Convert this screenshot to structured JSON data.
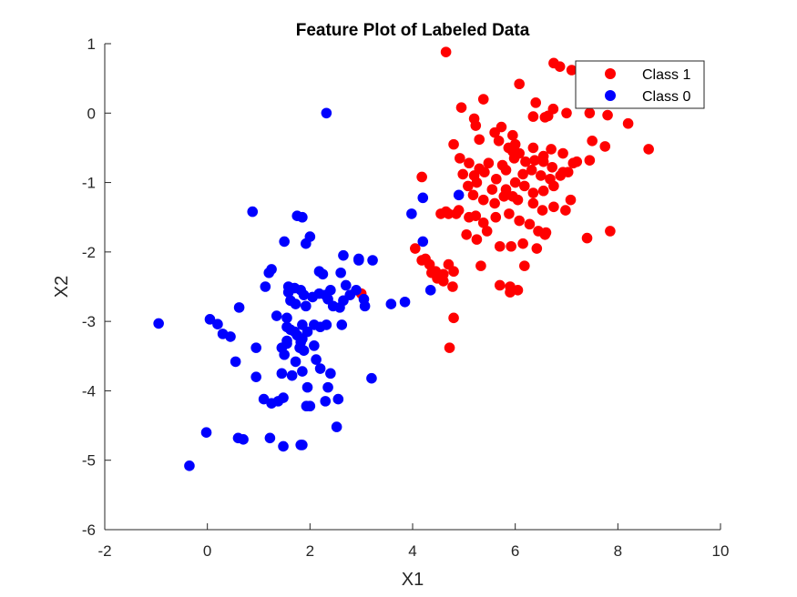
{
  "colors": {
    "class1": "#ff0000",
    "class0": "#0000ff",
    "axis": "#262626"
  },
  "chart_data": {
    "type": "scatter",
    "title": "Feature Plot of Labeled Data",
    "xlabel": "X1",
    "ylabel": "X2",
    "xlim": [
      -2,
      10
    ],
    "ylim": [
      -6,
      1
    ],
    "xticks": [
      -2,
      0,
      2,
      4,
      6,
      8,
      10
    ],
    "yticks": [
      -6,
      -5,
      -4,
      -3,
      -2,
      -1,
      0,
      1
    ],
    "xtick_labels": [
      "-2",
      "0",
      "2",
      "4",
      "6",
      "8",
      "10"
    ],
    "ytick_labels": [
      "-6",
      "-5",
      "-4",
      "-3",
      "-2",
      "-1",
      "0",
      "1"
    ],
    "grid": false,
    "legend_position": "top-right",
    "series": [
      {
        "name": "Class 1",
        "color": "#ff0000",
        "x": [
          4.65,
          6.75,
          6.87,
          7.1,
          4.95,
          5.38,
          5.2,
          6.08,
          6.4,
          6.35,
          6.58,
          6.64,
          6.74,
          7.0,
          7.45,
          7.8,
          8.2,
          4.8,
          5.23,
          5.3,
          5.73,
          5.95,
          5.6,
          5.68,
          6.0,
          5.87,
          6.35,
          6.7,
          6.93,
          5.95,
          6.08,
          6.55,
          7.2,
          7.5,
          7.75,
          8.6,
          4.92,
          5.1,
          5.3,
          5.48,
          5.75,
          5.98,
          6.2,
          6.38,
          6.55,
          6.72,
          6.93,
          7.13,
          7.45,
          4.98,
          5.2,
          5.4,
          5.63,
          5.82,
          6.0,
          6.15,
          6.32,
          6.5,
          6.68,
          6.88,
          7.03,
          4.18,
          5.08,
          5.25,
          5.55,
          5.82,
          5.95,
          6.18,
          6.35,
          6.55,
          6.75,
          5.18,
          5.38,
          5.6,
          5.78,
          6.05,
          6.35,
          6.53,
          6.75,
          6.98,
          7.08,
          4.7,
          4.9,
          5.1,
          5.23,
          5.38,
          5.62,
          5.88,
          6.08,
          6.28,
          6.45,
          6.58,
          4.55,
          4.65,
          4.85,
          5.05,
          5.25,
          5.45,
          5.7,
          5.92,
          6.15,
          6.42,
          6.6,
          4.05,
          4.18,
          4.33,
          4.45,
          4.6,
          4.7,
          4.8,
          5.33,
          5.9,
          6.05,
          6.18,
          7.4,
          7.85,
          4.25,
          4.37,
          4.48,
          4.6,
          4.78,
          3.0,
          5.7,
          5.9,
          4.8,
          4.72
        ],
        "y": [
          0.88,
          0.72,
          0.67,
          0.62,
          0.08,
          0.2,
          -0.08,
          0.42,
          0.15,
          -0.05,
          -0.06,
          -0.04,
          0.06,
          0.0,
          0.0,
          -0.03,
          -0.15,
          -0.45,
          -0.18,
          -0.38,
          -0.2,
          -0.32,
          -0.28,
          -0.4,
          -0.45,
          -0.5,
          -0.5,
          -0.52,
          -0.58,
          -0.55,
          -0.58,
          -0.62,
          -0.7,
          -0.4,
          -0.48,
          -0.52,
          -0.65,
          -0.72,
          -0.8,
          -0.72,
          -0.75,
          -0.65,
          -0.7,
          -0.68,
          -0.7,
          -0.78,
          -0.85,
          -0.72,
          -0.68,
          -0.88,
          -0.9,
          -0.85,
          -0.95,
          -0.82,
          -1.0,
          -0.88,
          -0.82,
          -0.9,
          -0.95,
          -0.9,
          -0.85,
          -0.92,
          -1.05,
          -1.0,
          -1.1,
          -1.1,
          -1.2,
          -1.05,
          -1.15,
          -1.12,
          -1.05,
          -1.18,
          -1.25,
          -1.3,
          -1.2,
          -1.25,
          -1.3,
          -1.4,
          -1.35,
          -1.4,
          -1.25,
          -1.45,
          -1.4,
          -1.5,
          -1.48,
          -1.58,
          -1.5,
          -1.45,
          -1.55,
          -1.6,
          -1.7,
          -1.75,
          -1.45,
          -1.42,
          -1.45,
          -1.75,
          -1.82,
          -1.7,
          -1.92,
          -1.92,
          -1.88,
          -1.95,
          -1.72,
          -1.95,
          -2.12,
          -2.18,
          -2.28,
          -2.32,
          -2.18,
          -2.28,
          -2.2,
          -2.5,
          -2.55,
          -2.2,
          -1.8,
          -1.7,
          -2.1,
          -2.3,
          -2.38,
          -2.42,
          -2.5,
          -2.6,
          -2.48,
          -2.58,
          -2.95,
          -3.38
        ]
      },
      {
        "name": "Class 0",
        "color": "#0000ff",
        "x": [
          2.32,
          4.9,
          4.2,
          3.98,
          4.2,
          4.35,
          3.85,
          3.58,
          3.07,
          2.95,
          2.7,
          2.65,
          2.0,
          1.92,
          1.85,
          1.75,
          0.88,
          1.25,
          1.13,
          1.2,
          1.5,
          1.58,
          1.7,
          1.82,
          2.18,
          2.25,
          2.4,
          2.6,
          2.95,
          2.78,
          2.9,
          3.05,
          3.22,
          1.58,
          1.62,
          1.88,
          2.18,
          2.35,
          2.45,
          2.58,
          1.55,
          1.72,
          1.92,
          2.05,
          2.3,
          2.65,
          1.85,
          1.95,
          2.08,
          2.2,
          1.82,
          2.32,
          1.35,
          1.55,
          1.62,
          1.7,
          1.55,
          1.75,
          1.85,
          -0.95,
          0.05,
          0.2,
          0.3,
          0.45,
          0.62,
          1.45,
          1.55,
          1.8,
          2.08,
          0.95,
          1.5,
          1.88,
          2.12,
          2.2,
          1.72,
          0.55,
          1.85,
          2.4,
          1.95,
          2.62,
          2.35,
          1.1,
          1.25,
          1.38,
          1.48,
          1.93,
          3.2,
          0.95,
          1.45,
          1.65,
          2.0,
          2.3,
          2.55,
          1.85,
          2.52,
          1.22,
          1.48,
          1.82,
          0.6,
          0.7,
          -0.02,
          -0.35
        ],
        "y": [
          0.0,
          -1.18,
          -1.22,
          -1.45,
          -1.85,
          -2.55,
          -2.72,
          -2.75,
          -2.78,
          -2.12,
          -2.48,
          -2.05,
          -1.78,
          -1.88,
          -1.5,
          -1.48,
          -1.42,
          -2.25,
          -2.5,
          -2.3,
          -1.85,
          -2.58,
          -2.52,
          -2.55,
          -2.28,
          -2.32,
          -2.55,
          -2.3,
          -2.1,
          -2.62,
          -2.55,
          -2.68,
          -2.12,
          -2.5,
          -2.7,
          -2.62,
          -2.6,
          -2.68,
          -2.78,
          -2.8,
          -2.95,
          -2.75,
          -2.78,
          -2.65,
          -2.62,
          -2.7,
          -3.05,
          -3.15,
          -3.05,
          -3.08,
          -3.3,
          -3.05,
          -2.92,
          -3.08,
          -3.12,
          -3.15,
          -3.32,
          -3.2,
          -3.25,
          -3.03,
          -2.97,
          -3.04,
          -3.18,
          -3.22,
          -2.8,
          -3.38,
          -3.28,
          -3.38,
          -3.35,
          -3.38,
          -3.48,
          -3.42,
          -3.55,
          -3.68,
          -3.58,
          -3.58,
          -3.72,
          -3.75,
          -3.95,
          -3.05,
          -3.95,
          -4.12,
          -4.18,
          -4.15,
          -4.1,
          -4.22,
          -3.82,
          -3.8,
          -3.75,
          -3.78,
          -4.22,
          -4.15,
          -4.12,
          -4.78,
          -4.52,
          -4.68,
          -4.8,
          -4.78,
          -4.68,
          -4.7,
          -4.6,
          -5.08
        ]
      }
    ]
  }
}
